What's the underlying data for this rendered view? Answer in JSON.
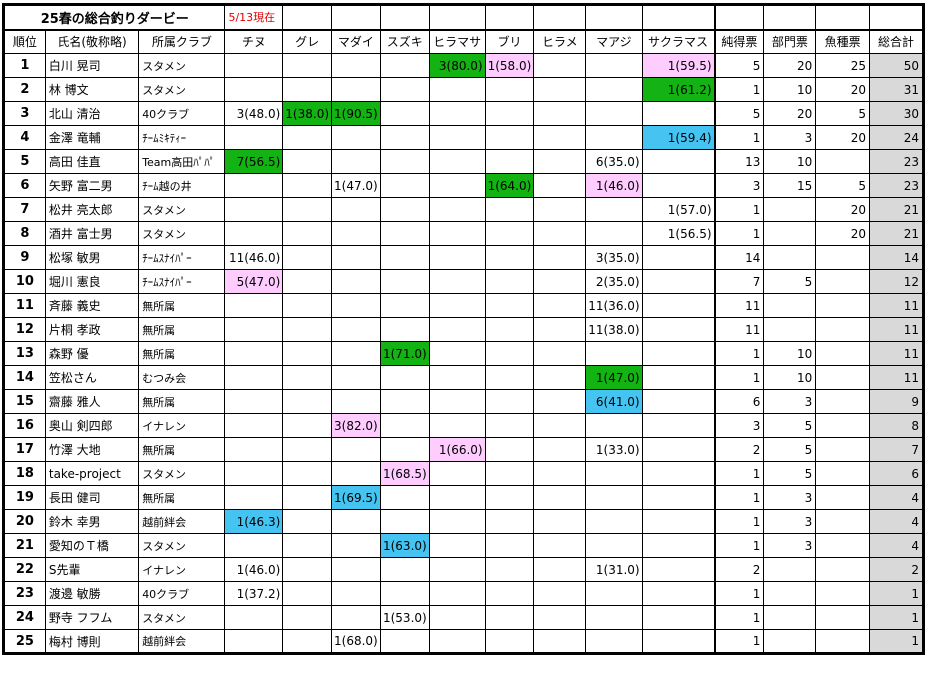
{
  "title": "25春の総合釣りダービー",
  "as_of": "5/13現在",
  "headers": [
    "順位",
    "氏名(敬称略)",
    "所属クラブ",
    "チヌ",
    "グレ",
    "マダイ",
    "スズキ",
    "ヒラマサ",
    "ブリ",
    "ヒラメ",
    "マアジ",
    "サクラマス",
    "純得票",
    "部門票",
    "魚種票",
    "総合計"
  ],
  "highlight_colors": {
    "g": "#12b312",
    "p": "#ffccff",
    "b": "#45c4f2",
    "total_bg": "#d9d9d9",
    "as_of": "#e00000"
  },
  "rows": [
    {
      "rank": "1",
      "name": "白川 晃司",
      "club": "スタメン",
      "fish": [
        "",
        "",
        "",
        "",
        "3(80.0)",
        "1(58.0)",
        "",
        "",
        "1(59.5)"
      ],
      "hl": [
        "",
        "",
        "",
        "",
        "g",
        "p",
        "",
        "",
        "p"
      ],
      "net": "5",
      "dept": "20",
      "species": "25",
      "total": "50"
    },
    {
      "rank": "2",
      "name": "林 博文",
      "club": "スタメン",
      "fish": [
        "",
        "",
        "",
        "",
        "",
        "",
        "",
        "",
        "1(61.2)"
      ],
      "hl": [
        "",
        "",
        "",
        "",
        "",
        "",
        "",
        "",
        "g"
      ],
      "net": "1",
      "dept": "10",
      "species": "20",
      "total": "31"
    },
    {
      "rank": "3",
      "name": "北山 清治",
      "club": "40クラブ",
      "fish": [
        "3(48.0)",
        "1(38.0)",
        "1(90.5)",
        "",
        "",
        "",
        "",
        "",
        ""
      ],
      "hl": [
        "",
        "g",
        "g",
        "",
        "",
        "",
        "",
        "",
        ""
      ],
      "net": "5",
      "dept": "20",
      "species": "5",
      "total": "30"
    },
    {
      "rank": "4",
      "name": "金澤 竜輔",
      "club": "ﾁｰﾑﾐｷﾃｨｰ",
      "fish": [
        "",
        "",
        "",
        "",
        "",
        "",
        "",
        "",
        "1(59.4)"
      ],
      "hl": [
        "",
        "",
        "",
        "",
        "",
        "",
        "",
        "",
        "b"
      ],
      "net": "1",
      "dept": "3",
      "species": "20",
      "total": "24"
    },
    {
      "rank": "5",
      "name": "高田 佳直",
      "club": "Team高田ﾊﾟﾊﾟ",
      "fish": [
        "7(56.5)",
        "",
        "",
        "",
        "",
        "",
        "",
        "6(35.0)",
        ""
      ],
      "hl": [
        "g",
        "",
        "",
        "",
        "",
        "",
        "",
        "",
        ""
      ],
      "net": "13",
      "dept": "10",
      "species": "",
      "total": "23"
    },
    {
      "rank": "6",
      "name": "矢野 富二男",
      "club": "ﾁｰﾑ越の井",
      "fish": [
        "",
        "",
        "1(47.0)",
        "",
        "",
        "1(64.0)",
        "",
        "1(46.0)",
        ""
      ],
      "hl": [
        "",
        "",
        "",
        "",
        "",
        "g",
        "",
        "p",
        ""
      ],
      "net": "3",
      "dept": "15",
      "species": "5",
      "total": "23"
    },
    {
      "rank": "7",
      "name": "松井 亮太郎",
      "club": "スタメン",
      "fish": [
        "",
        "",
        "",
        "",
        "",
        "",
        "",
        "",
        "1(57.0)"
      ],
      "hl": [
        "",
        "",
        "",
        "",
        "",
        "",
        "",
        "",
        ""
      ],
      "net": "1",
      "dept": "",
      "species": "20",
      "total": "21"
    },
    {
      "rank": "8",
      "name": "酒井 富士男",
      "club": "スタメン",
      "fish": [
        "",
        "",
        "",
        "",
        "",
        "",
        "",
        "",
        "1(56.5)"
      ],
      "hl": [
        "",
        "",
        "",
        "",
        "",
        "",
        "",
        "",
        ""
      ],
      "net": "1",
      "dept": "",
      "species": "20",
      "total": "21"
    },
    {
      "rank": "9",
      "name": "松塚 敏男",
      "club": "ﾁｰﾑｽﾅｲﾊﾟｰ",
      "fish": [
        "11(46.0)",
        "",
        "",
        "",
        "",
        "",
        "",
        "3(35.0)",
        ""
      ],
      "hl": [
        "",
        "",
        "",
        "",
        "",
        "",
        "",
        "",
        ""
      ],
      "net": "14",
      "dept": "",
      "species": "",
      "total": "14"
    },
    {
      "rank": "10",
      "name": "堀川 憲良",
      "club": "ﾁｰﾑｽﾅｲﾊﾟｰ",
      "fish": [
        "5(47.0)",
        "",
        "",
        "",
        "",
        "",
        "",
        "2(35.0)",
        ""
      ],
      "hl": [
        "p",
        "",
        "",
        "",
        "",
        "",
        "",
        "",
        ""
      ],
      "net": "7",
      "dept": "5",
      "species": "",
      "total": "12"
    },
    {
      "rank": "11",
      "name": "斉藤 義史",
      "club": "無所属",
      "fish": [
        "",
        "",
        "",
        "",
        "",
        "",
        "",
        "11(36.0)",
        ""
      ],
      "hl": [
        "",
        "",
        "",
        "",
        "",
        "",
        "",
        "",
        ""
      ],
      "net": "11",
      "dept": "",
      "species": "",
      "total": "11"
    },
    {
      "rank": "12",
      "name": "片桐 孝政",
      "club": "無所属",
      "fish": [
        "",
        "",
        "",
        "",
        "",
        "",
        "",
        "11(38.0)",
        ""
      ],
      "hl": [
        "",
        "",
        "",
        "",
        "",
        "",
        "",
        "",
        ""
      ],
      "net": "11",
      "dept": "",
      "species": "",
      "total": "11"
    },
    {
      "rank": "13",
      "name": "森野 優",
      "club": "無所属",
      "fish": [
        "",
        "",
        "",
        "1(71.0)",
        "",
        "",
        "",
        "",
        ""
      ],
      "hl": [
        "",
        "",
        "",
        "g",
        "",
        "",
        "",
        "",
        ""
      ],
      "net": "1",
      "dept": "10",
      "species": "",
      "total": "11"
    },
    {
      "rank": "14",
      "name": "笠松さん",
      "club": "むつみ会",
      "fish": [
        "",
        "",
        "",
        "",
        "",
        "",
        "",
        "1(47.0)",
        ""
      ],
      "hl": [
        "",
        "",
        "",
        "",
        "",
        "",
        "",
        "g",
        ""
      ],
      "net": "1",
      "dept": "10",
      "species": "",
      "total": "11"
    },
    {
      "rank": "15",
      "name": "齋藤 雅人",
      "club": "無所属",
      "fish": [
        "",
        "",
        "",
        "",
        "",
        "",
        "",
        "6(41.0)",
        ""
      ],
      "hl": [
        "",
        "",
        "",
        "",
        "",
        "",
        "",
        "b",
        ""
      ],
      "net": "6",
      "dept": "3",
      "species": "",
      "total": "9"
    },
    {
      "rank": "16",
      "name": "奥山 剣四郎",
      "club": "イナレン",
      "fish": [
        "",
        "",
        "3(82.0)",
        "",
        "",
        "",
        "",
        "",
        ""
      ],
      "hl": [
        "",
        "",
        "p",
        "",
        "",
        "",
        "",
        "",
        ""
      ],
      "net": "3",
      "dept": "5",
      "species": "",
      "total": "8"
    },
    {
      "rank": "17",
      "name": "竹澤 大地",
      "club": "無所属",
      "fish": [
        "",
        "",
        "",
        "",
        "1(66.0)",
        "",
        "",
        "1(33.0)",
        ""
      ],
      "hl": [
        "",
        "",
        "",
        "",
        "p",
        "",
        "",
        "",
        ""
      ],
      "net": "2",
      "dept": "5",
      "species": "",
      "total": "7"
    },
    {
      "rank": "18",
      "name": "take-project",
      "club": "スタメン",
      "fish": [
        "",
        "",
        "",
        "1(68.5)",
        "",
        "",
        "",
        "",
        ""
      ],
      "hl": [
        "",
        "",
        "",
        "p",
        "",
        "",
        "",
        "",
        ""
      ],
      "net": "1",
      "dept": "5",
      "species": "",
      "total": "6"
    },
    {
      "rank": "19",
      "name": "長田 健司",
      "club": "無所属",
      "fish": [
        "",
        "",
        "1(69.5)",
        "",
        "",
        "",
        "",
        "",
        ""
      ],
      "hl": [
        "",
        "",
        "b",
        "",
        "",
        "",
        "",
        "",
        ""
      ],
      "net": "1",
      "dept": "3",
      "species": "",
      "total": "4"
    },
    {
      "rank": "20",
      "name": "鈴木 幸男",
      "club": "越前絆会",
      "fish": [
        "1(46.3)",
        "",
        "",
        "",
        "",
        "",
        "",
        "",
        ""
      ],
      "hl": [
        "b",
        "",
        "",
        "",
        "",
        "",
        "",
        "",
        ""
      ],
      "net": "1",
      "dept": "3",
      "species": "",
      "total": "4"
    },
    {
      "rank": "21",
      "name": "愛知のＴ橋",
      "club": "スタメン",
      "fish": [
        "",
        "",
        "",
        "1(63.0)",
        "",
        "",
        "",
        "",
        ""
      ],
      "hl": [
        "",
        "",
        "",
        "b",
        "",
        "",
        "",
        "",
        ""
      ],
      "net": "1",
      "dept": "3",
      "species": "",
      "total": "4"
    },
    {
      "rank": "22",
      "name": "S先輩",
      "club": "イナレン",
      "fish": [
        "1(46.0)",
        "",
        "",
        "",
        "",
        "",
        "",
        "1(31.0)",
        ""
      ],
      "hl": [
        "",
        "",
        "",
        "",
        "",
        "",
        "",
        "",
        ""
      ],
      "net": "2",
      "dept": "",
      "species": "",
      "total": "2"
    },
    {
      "rank": "23",
      "name": "渡邊 敏勝",
      "club": "40クラブ",
      "fish": [
        "1(37.2)",
        "",
        "",
        "",
        "",
        "",
        "",
        "",
        ""
      ],
      "hl": [
        "",
        "",
        "",
        "",
        "",
        "",
        "",
        "",
        ""
      ],
      "net": "1",
      "dept": "",
      "species": "",
      "total": "1"
    },
    {
      "rank": "24",
      "name": "野寺 フフム",
      "club": "スタメン",
      "fish": [
        "",
        "",
        "",
        "1(53.0)",
        "",
        "",
        "",
        "",
        ""
      ],
      "hl": [
        "",
        "",
        "",
        "",
        "",
        "",
        "",
        "",
        ""
      ],
      "net": "1",
      "dept": "",
      "species": "",
      "total": "1"
    },
    {
      "rank": "25",
      "name": "梅村 博則",
      "club": "越前絆会",
      "fish": [
        "",
        "",
        "1(68.0)",
        "",
        "",
        "",
        "",
        "",
        ""
      ],
      "hl": [
        "",
        "",
        "",
        "",
        "",
        "",
        "",
        "",
        ""
      ],
      "net": "1",
      "dept": "",
      "species": "",
      "total": "1"
    }
  ]
}
